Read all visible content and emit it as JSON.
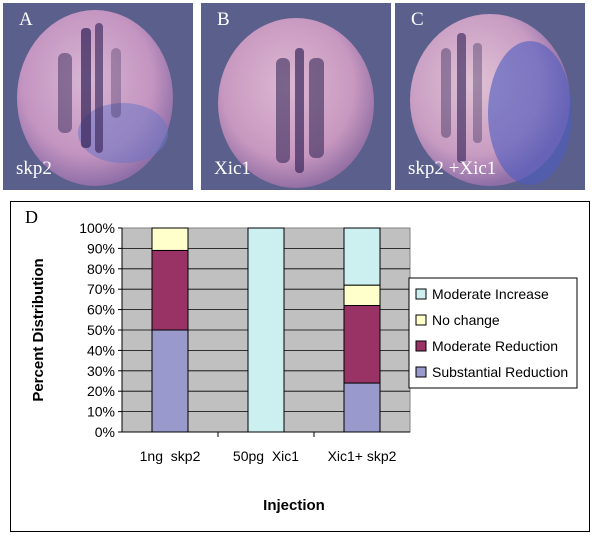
{
  "panels": {
    "a": {
      "letter": "A",
      "caption": "skp2"
    },
    "b": {
      "letter": "B",
      "caption": "Xic1"
    },
    "c": {
      "letter": "C",
      "caption": "skp2 +Xic1"
    },
    "d": {
      "letter": "D"
    }
  },
  "colors": {
    "photo_background": "#5a5f8c",
    "embryo_base": "#c9a0c4",
    "stain": "#2a2050",
    "plot_background": "#c0c0c0"
  },
  "chart_data": {
    "type": "bar",
    "stacked": true,
    "categories": [
      "1ng  skp2",
      "50pg  Xic1",
      "Xic1+ skp2"
    ],
    "series": [
      {
        "name": "Substantial Reduction",
        "color": "#9999cc",
        "values": [
          50,
          0,
          24
        ]
      },
      {
        "name": "Moderate Reduction",
        "color": "#993366",
        "values": [
          39,
          0,
          38
        ]
      },
      {
        "name": "No change",
        "color": "#ffffcc",
        "values": [
          11,
          0,
          10
        ]
      },
      {
        "name": "Moderate Increase",
        "color": "#ccf0f0",
        "values": [
          0,
          100,
          28
        ]
      }
    ],
    "ylim": [
      0,
      100
    ],
    "yticks": [
      "0%",
      "10%",
      "20%",
      "30%",
      "40%",
      "50%",
      "60%",
      "70%",
      "80%",
      "90%",
      "100%"
    ],
    "xlabel": "Injection",
    "ylabel": "Percent Distribution",
    "legend_position": "right",
    "grid": true
  }
}
